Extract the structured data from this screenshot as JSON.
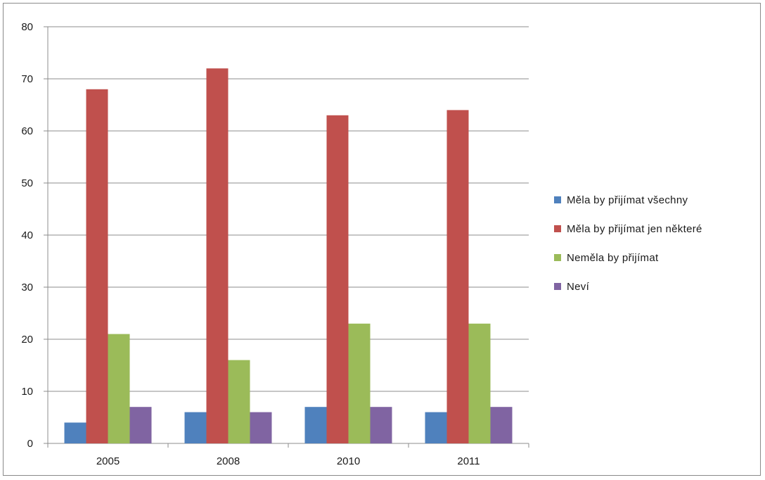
{
  "chart_data": {
    "type": "bar",
    "categories": [
      "2005",
      "2008",
      "2010",
      "2011"
    ],
    "series": [
      {
        "name": "Měla by přijímat všechny",
        "color": "#4f81bd",
        "values": [
          4,
          6,
          7,
          6
        ]
      },
      {
        "name": "Měla by přijímat jen některé",
        "color": "#c0504d",
        "values": [
          68,
          72,
          63,
          64
        ]
      },
      {
        "name": "Neměla by přijímat",
        "color": "#9bbb59",
        "values": [
          21,
          16,
          23,
          23
        ]
      },
      {
        "name": "Neví",
        "color": "#8064a2",
        "values": [
          7,
          6,
          7,
          7
        ]
      }
    ],
    "ylim": [
      0,
      80
    ],
    "yticks": [
      "0",
      "10",
      "20",
      "30",
      "40",
      "50",
      "60",
      "70",
      "80"
    ],
    "grid": true,
    "legend_position": "right",
    "title": "",
    "xlabel": "",
    "ylabel": ""
  }
}
